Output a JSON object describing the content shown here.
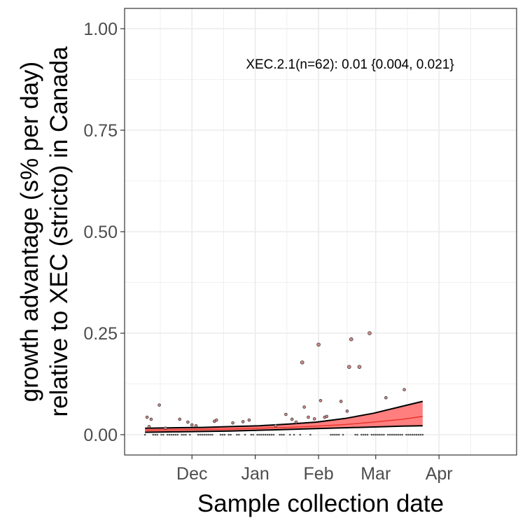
{
  "chart_data": {
    "type": "scatter",
    "title": "",
    "xlabel": "Sample collection date",
    "ylabel_line1": "growth advantage (s% per day)",
    "ylabel_line2": "relative to XEC (stricto) in Canada",
    "ylim": [
      -0.05,
      1.05
    ],
    "xlim": [
      "2024-10-29",
      "2025-05-09"
    ],
    "x_ticks": [
      {
        "date": "2024-12-01",
        "label": "Dec"
      },
      {
        "date": "2025-01-01",
        "label": "Jan"
      },
      {
        "date": "2025-02-01",
        "label": "Feb"
      },
      {
        "date": "2025-03-01",
        "label": "Mar"
      },
      {
        "date": "2025-04-01",
        "label": "Apr"
      }
    ],
    "y_ticks": [
      {
        "value": 0.0,
        "label": "0.00"
      },
      {
        "value": 0.25,
        "label": "0.25"
      },
      {
        "value": 0.5,
        "label": "0.50"
      },
      {
        "value": 0.75,
        "label": "0.75"
      },
      {
        "value": 1.0,
        "label": "1.00"
      }
    ],
    "grid": true,
    "annotation": "XEC.2.1(n=62): 0.01 {0.004, 0.021}",
    "colors": {
      "fit_line": "#e8362d",
      "ribbon": "#ff7f7f",
      "ribbon_edge": "#000000",
      "point_fill": "#d48a8a",
      "point_stroke": "#3a3a3a",
      "grid": "#ebebeb",
      "panel_border": "#333333"
    },
    "fit": {
      "x": [
        "2024-11-08",
        "2024-11-22",
        "2024-12-06",
        "2024-12-20",
        "2025-01-03",
        "2025-01-17",
        "2025-01-31",
        "2025-02-14",
        "2025-02-28",
        "2025-03-14",
        "2025-03-24"
      ],
      "y": [
        0.011,
        0.012,
        0.013,
        0.014,
        0.016,
        0.018,
        0.021,
        0.025,
        0.031,
        0.038,
        0.045
      ],
      "lower": [
        0.006,
        0.007,
        0.008,
        0.009,
        0.011,
        0.013,
        0.015,
        0.017,
        0.019,
        0.021,
        0.022
      ],
      "upper": [
        0.016,
        0.017,
        0.018,
        0.02,
        0.022,
        0.026,
        0.031,
        0.04,
        0.053,
        0.07,
        0.082
      ]
    },
    "points": [
      {
        "x": "2024-11-08",
        "y": 0.0
      },
      {
        "x": "2024-11-09",
        "y": 0.043
      },
      {
        "x": "2024-11-10",
        "y": 0.02
      },
      {
        "x": "2024-11-11",
        "y": 0.038
      },
      {
        "x": "2024-11-13",
        "y": 0.0
      },
      {
        "x": "2024-11-15",
        "y": 0.073
      },
      {
        "x": "2024-11-17",
        "y": 0.0
      },
      {
        "x": "2024-11-18",
        "y": 0.016
      },
      {
        "x": "2024-11-20",
        "y": 0.0
      },
      {
        "x": "2024-11-25",
        "y": 0.038
      },
      {
        "x": "2024-11-29",
        "y": 0.031
      },
      {
        "x": "2024-12-01",
        "y": 0.024
      },
      {
        "x": "2024-12-03",
        "y": 0.022
      },
      {
        "x": "2024-12-12",
        "y": 0.033
      },
      {
        "x": "2024-12-13",
        "y": 0.036
      },
      {
        "x": "2024-12-21",
        "y": 0.029
      },
      {
        "x": "2024-12-26",
        "y": 0.032
      },
      {
        "x": "2024-12-29",
        "y": 0.036
      },
      {
        "x": "2025-01-11",
        "y": 0.022
      },
      {
        "x": "2025-01-16",
        "y": 0.05
      },
      {
        "x": "2025-01-19",
        "y": 0.038
      },
      {
        "x": "2025-01-21",
        "y": 0.031
      },
      {
        "x": "2025-01-24",
        "y": 0.178
      },
      {
        "x": "2025-01-25",
        "y": 0.068
      },
      {
        "x": "2025-01-27",
        "y": 0.043
      },
      {
        "x": "2025-01-30",
        "y": 0.039
      },
      {
        "x": "2025-02-01",
        "y": 0.222
      },
      {
        "x": "2025-02-02",
        "y": 0.084
      },
      {
        "x": "2025-02-04",
        "y": 0.043
      },
      {
        "x": "2025-02-05",
        "y": 0.045
      },
      {
        "x": "2025-02-12",
        "y": 0.082
      },
      {
        "x": "2025-02-15",
        "y": 0.058
      },
      {
        "x": "2025-02-16",
        "y": 0.167
      },
      {
        "x": "2025-02-17",
        "y": 0.235
      },
      {
        "x": "2025-02-21",
        "y": 0.167
      },
      {
        "x": "2025-02-26",
        "y": 0.25
      },
      {
        "x": "2025-03-06",
        "y": 0.091
      },
      {
        "x": "2025-03-15",
        "y": 0.111
      },
      {
        "x": "2025-03-20",
        "y": 0.0
      }
    ],
    "zero_count_days": [
      "2024-11-12",
      "2024-11-14",
      "2024-11-16",
      "2024-11-19",
      "2024-11-21",
      "2024-11-22",
      "2024-11-23",
      "2024-11-24",
      "2024-11-26",
      "2024-11-27",
      "2024-11-28",
      "2024-11-30",
      "2024-12-04",
      "2024-12-05",
      "2024-12-06",
      "2024-12-07",
      "2024-12-08",
      "2024-12-09",
      "2024-12-10",
      "2024-12-11",
      "2024-12-15",
      "2024-12-16",
      "2024-12-17",
      "2024-12-19",
      "2024-12-20",
      "2024-12-23",
      "2024-12-24",
      "2024-12-27",
      "2024-12-30",
      "2024-12-31",
      "2025-01-02",
      "2025-01-03",
      "2025-01-04",
      "2025-01-05",
      "2025-01-06",
      "2025-01-07",
      "2025-01-08",
      "2025-01-09",
      "2025-01-10",
      "2025-01-13",
      "2025-01-14",
      "2025-01-15",
      "2025-01-18",
      "2025-01-20",
      "2025-01-23",
      "2025-01-28",
      "2025-02-07",
      "2025-02-08",
      "2025-02-09",
      "2025-02-10",
      "2025-02-11",
      "2025-02-13",
      "2025-02-19",
      "2025-02-20",
      "2025-02-22",
      "2025-02-23",
      "2025-02-24",
      "2025-02-25",
      "2025-02-27",
      "2025-02-28",
      "2025-03-01",
      "2025-03-02",
      "2025-03-03",
      "2025-03-04",
      "2025-03-05",
      "2025-03-07",
      "2025-03-08",
      "2025-03-09",
      "2025-03-10",
      "2025-03-11",
      "2025-03-12",
      "2025-03-13",
      "2025-03-14",
      "2025-03-16",
      "2025-03-17",
      "2025-03-18",
      "2025-03-19",
      "2025-03-21",
      "2025-03-22",
      "2025-03-23",
      "2025-03-24"
    ]
  }
}
